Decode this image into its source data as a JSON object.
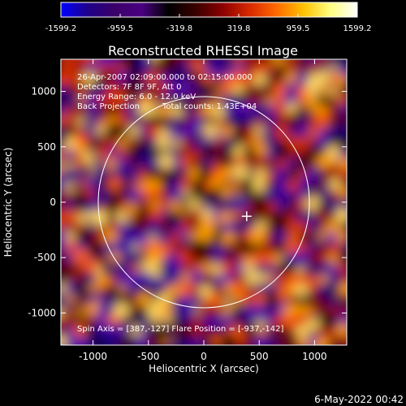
{
  "colorbar": {
    "ticks": [
      "-1599.2",
      "-959.5",
      "-319.8",
      "319.8",
      "959.5",
      "1599.2"
    ],
    "colormap": [
      "#0000ff",
      "#20008a",
      "#3a0068",
      "#4b0082",
      "#000000",
      "#3a0000",
      "#8b0000",
      "#d82800",
      "#ff6a00",
      "#ffc000",
      "#ffff80",
      "#ffffff"
    ]
  },
  "plot": {
    "title": "Reconstructed RHESSI Image",
    "annotations": {
      "line1": "26-Apr-2007 02:09:00.000 to 02:15:00.000",
      "line2": "Detectors: 7F 8F 9F, Att 0",
      "line3": "Energy Range: 6.0 - 12.0 keV",
      "line4a": "Back Projection",
      "line4b": "Total counts: 1.43E+04",
      "footer": "Spin Axis = [387,-127]    Flare Position = [-937,-142]"
    },
    "footer_date": "6-May-2022 00:42"
  },
  "chart_data": {
    "type": "heatmap",
    "title": "Reconstructed RHESSI Image",
    "xlabel": "Heliocentric X (arcsec)",
    "ylabel": "Heliocentric Y (arcsec)",
    "xlim": [
      -1290,
      1290
    ],
    "ylim": [
      -1290,
      1290
    ],
    "xticks": [
      -1000,
      -500,
      0,
      500,
      1000
    ],
    "yticks": [
      -1000,
      -500,
      0,
      500,
      1000
    ],
    "xtick_labels": [
      "-1000",
      "-500",
      "0",
      "500",
      "1000"
    ],
    "ytick_labels": [
      "-1000",
      "-500",
      "0",
      "500",
      "1000"
    ],
    "color_range": [
      -1599.2,
      1599.2
    ],
    "solar_limb_radius": 953,
    "spin_axis": [
      387,
      -127
    ],
    "flare_position": [
      -937,
      -142
    ]
  }
}
